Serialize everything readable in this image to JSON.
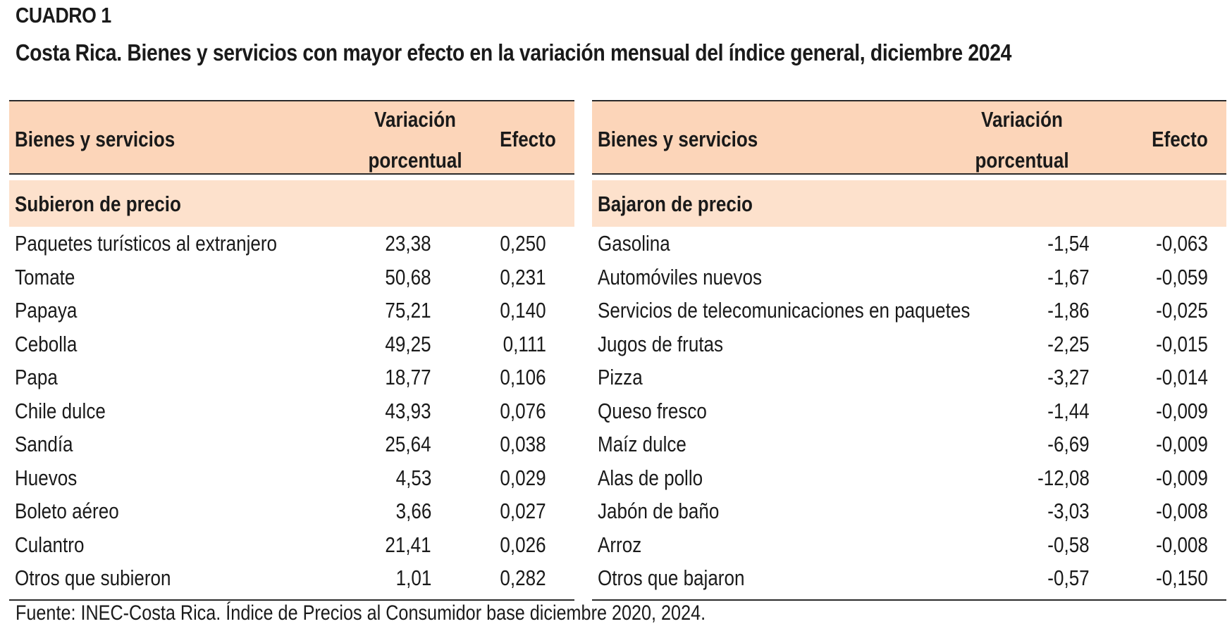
{
  "label": "CUADRO 1",
  "title": "Costa Rica. Bienes y servicios con mayor efecto en la variación mensual del índice general, diciembre 2024",
  "columns": {
    "name": "Bienes y servicios",
    "variation_line1": "Variación",
    "variation_line2": "porcentual",
    "effect": "Efecto"
  },
  "colors": {
    "header_bg": "#fcd5b9",
    "section_bg": "#fde1cc",
    "rule": "#2a2a2a"
  },
  "left": {
    "section": "Subieron de precio",
    "rows": [
      {
        "name": "Paquetes turísticos al extranjero",
        "variation": "23,38",
        "effect": "0,250"
      },
      {
        "name": "Tomate",
        "variation": "50,68",
        "effect": "0,231"
      },
      {
        "name": "Papaya",
        "variation": "75,21",
        "effect": "0,140"
      },
      {
        "name": "Cebolla",
        "variation": "49,25",
        "effect": "0,111"
      },
      {
        "name": "Papa",
        "variation": "18,77",
        "effect": "0,106"
      },
      {
        "name": "Chile dulce",
        "variation": "43,93",
        "effect": "0,076"
      },
      {
        "name": "Sandía",
        "variation": "25,64",
        "effect": "0,038"
      },
      {
        "name": "Huevos",
        "variation": "4,53",
        "effect": "0,029"
      },
      {
        "name": "Boleto aéreo",
        "variation": "3,66",
        "effect": "0,027"
      },
      {
        "name": "Culantro",
        "variation": "21,41",
        "effect": "0,026"
      },
      {
        "name": "Otros que subieron",
        "variation": "1,01",
        "effect": "0,282"
      }
    ]
  },
  "right": {
    "section": "Bajaron de precio",
    "rows": [
      {
        "name": "Gasolina",
        "variation": "-1,54",
        "effect": "-0,063"
      },
      {
        "name": "Automóviles nuevos",
        "variation": "-1,67",
        "effect": "-0,059"
      },
      {
        "name": "Servicios de telecomunicaciones en paquetes",
        "variation": "-1,86",
        "effect": "-0,025"
      },
      {
        "name": "Jugos de frutas",
        "variation": "-2,25",
        "effect": "-0,015"
      },
      {
        "name": "Pizza",
        "variation": "-3,27",
        "effect": "-0,014"
      },
      {
        "name": "Queso fresco",
        "variation": "-1,44",
        "effect": "-0,009"
      },
      {
        "name": "Maíz dulce",
        "variation": "-6,69",
        "effect": "-0,009"
      },
      {
        "name": "Alas de pollo",
        "variation": "-12,08",
        "effect": "-0,009"
      },
      {
        "name": "Jabón de baño",
        "variation": "-3,03",
        "effect": "-0,008"
      },
      {
        "name": "Arroz",
        "variation": "-0,58",
        "effect": "-0,008"
      },
      {
        "name": "Otros que bajaron",
        "variation": "-0,57",
        "effect": "-0,150"
      }
    ]
  },
  "source": "Fuente: INEC-Costa Rica. Índice de Precios al Consumidor base diciembre 2020, 2024."
}
